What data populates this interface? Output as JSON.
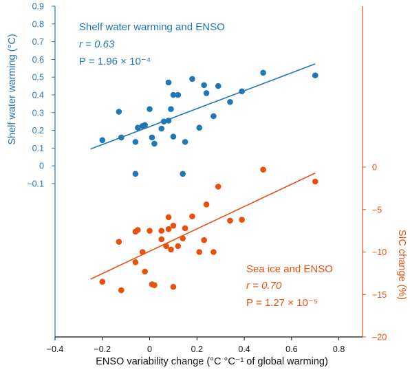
{
  "chart_data": {
    "type": "scatter",
    "xlabel": "ENSO variability change (°C °C⁻¹ of global warming)",
    "ylabel_left": "Shelf water warming (°C)",
    "ylabel_right": "SIC change (%)",
    "xlim": [
      -0.4,
      0.9
    ],
    "xticks": [
      "−0.4",
      "−0.2",
      "0",
      "0.2",
      "0.4",
      "0.6",
      "0.8"
    ],
    "ylim_left": [
      -0.1,
      0.9
    ],
    "yticks_left": [
      "0.9",
      "0.8",
      "0.7",
      "0.6",
      "0.5",
      "0.4",
      "0.3",
      "0.2",
      "0.1",
      "0",
      "−0.1"
    ],
    "ylim_right": [
      -20,
      0
    ],
    "yticks_right": [
      "0",
      "−5",
      "−10",
      "−15",
      "−20"
    ],
    "colors": {
      "left": "#1f77b4",
      "right": "#e8500e"
    },
    "series": [
      {
        "name": "Shelf water warming and ENSO",
        "axis": "left",
        "r_text": "r = 0.63",
        "p_text": "P = 1.96 × 10⁻⁴",
        "fit": {
          "x": [
            -0.25,
            0.7
          ],
          "y": [
            0.095,
            0.575
          ]
        },
        "points": [
          [
            -0.2,
            0.145
          ],
          [
            -0.13,
            0.305
          ],
          [
            -0.12,
            0.16
          ],
          [
            -0.06,
            0.135
          ],
          [
            -0.05,
            0.215
          ],
          [
            -0.03,
            0.225
          ],
          [
            -0.02,
            0.23
          ],
          [
            0.0,
            0.32
          ],
          [
            0.01,
            0.16
          ],
          [
            0.02,
            0.125
          ],
          [
            0.05,
            0.21
          ],
          [
            0.06,
            0.25
          ],
          [
            0.08,
            0.255
          ],
          [
            0.08,
            0.47
          ],
          [
            0.09,
            0.32
          ],
          [
            0.1,
            0.4
          ],
          [
            0.1,
            0.165
          ],
          [
            0.12,
            0.4
          ],
          [
            0.15,
            0.135
          ],
          [
            0.18,
            0.49
          ],
          [
            0.21,
            0.215
          ],
          [
            0.23,
            0.455
          ],
          [
            0.24,
            0.41
          ],
          [
            0.27,
            0.28
          ],
          [
            0.29,
            0.45
          ],
          [
            0.34,
            0.36
          ],
          [
            0.39,
            0.42
          ],
          [
            0.48,
            0.525
          ],
          [
            0.7,
            0.51
          ],
          [
            -0.06,
            -0.045
          ],
          [
            0.14,
            -0.045
          ]
        ]
      },
      {
        "name": "Sea ice and ENSO",
        "axis": "right",
        "r_text": "r = 0.70",
        "p_text": "P = 1.27 × 10⁻⁵",
        "fit": {
          "x": [
            -0.25,
            0.7
          ],
          "y": [
            -13.2,
            -0.7
          ]
        },
        "points": [
          [
            -0.2,
            -13.5
          ],
          [
            -0.13,
            -8.8
          ],
          [
            -0.12,
            -14.5
          ],
          [
            -0.06,
            -11.2
          ],
          [
            -0.06,
            -7.6
          ],
          [
            -0.05,
            -7.4
          ],
          [
            -0.03,
            -10.0
          ],
          [
            -0.02,
            -12.3
          ],
          [
            0.0,
            -7.5
          ],
          [
            0.01,
            -13.8
          ],
          [
            0.02,
            -13.9
          ],
          [
            0.05,
            -8.5
          ],
          [
            0.05,
            -7.5
          ],
          [
            0.07,
            -9.3
          ],
          [
            0.08,
            -7.3
          ],
          [
            0.08,
            -5.9
          ],
          [
            0.09,
            -9.7
          ],
          [
            0.1,
            -6.9
          ],
          [
            0.1,
            -14.1
          ],
          [
            0.12,
            -9.3
          ],
          [
            0.14,
            -8.4
          ],
          [
            0.15,
            -7.2
          ],
          [
            0.18,
            -5.8
          ],
          [
            0.21,
            -10.0
          ],
          [
            0.23,
            -8.6
          ],
          [
            0.24,
            -4.4
          ],
          [
            0.27,
            -10.0
          ],
          [
            0.29,
            -2.3
          ],
          [
            0.34,
            -6.3
          ],
          [
            0.39,
            -6.2
          ],
          [
            0.48,
            -0.3
          ],
          [
            0.7,
            -1.7
          ]
        ]
      }
    ]
  }
}
